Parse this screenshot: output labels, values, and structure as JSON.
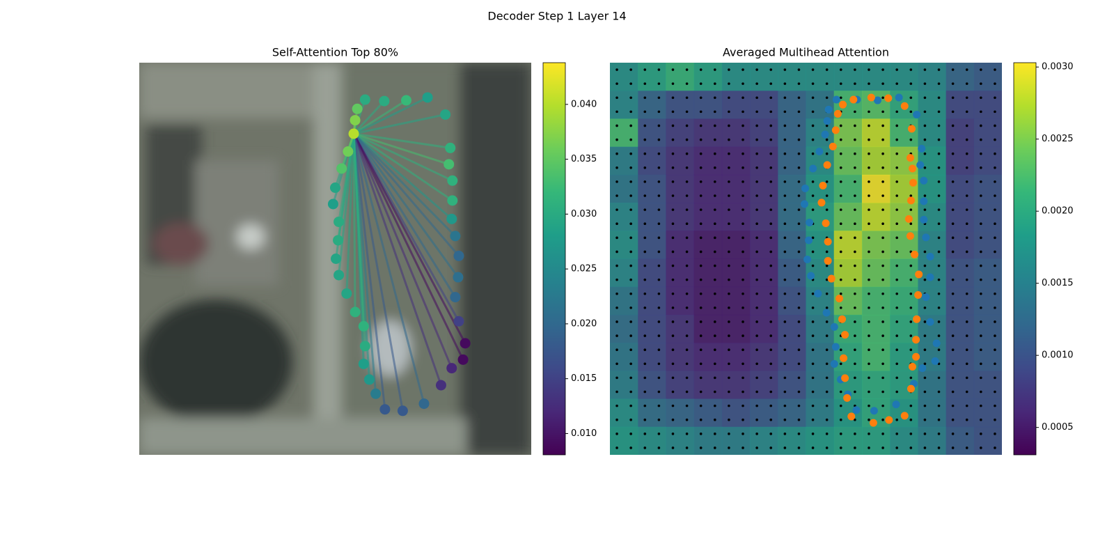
{
  "suptitle": "Decoder Step 1 Layer 14",
  "chart_data": [
    {
      "type": "scatter",
      "title": "Self-Attention Top 80%",
      "colormap": "viridis",
      "xlim": [
        0,
        552
      ],
      "ylim": [
        552,
        0
      ],
      "x": [
        318,
        345,
        376,
        406,
        431,
        438,
        436,
        441,
        441,
        440,
        445,
        450,
        449,
        445,
        450,
        459,
        456,
        440,
        425,
        401,
        371,
        346,
        333,
        324,
        316,
        318,
        316,
        304,
        292,
        281,
        277,
        280,
        281,
        273,
        276,
        285,
        294,
        302,
        304,
        307
      ],
      "y": [
        52,
        54,
        53,
        49,
        73,
        120,
        143,
        166,
        194,
        220,
        244,
        272,
        302,
        330,
        364,
        395,
        418,
        430,
        454,
        480,
        490,
        488,
        466,
        446,
        424,
        399,
        371,
        351,
        325,
        299,
        276,
        250,
        224,
        199,
        176,
        149,
        125,
        100,
        81,
        65
      ],
      "values": [
        0.03,
        0.03,
        0.032,
        0.028,
        0.029,
        0.031,
        0.033,
        0.031,
        0.031,
        0.027,
        0.022,
        0.02,
        0.021,
        0.02,
        0.015,
        0.009,
        0.009,
        0.012,
        0.013,
        0.02,
        0.018,
        0.018,
        0.023,
        0.027,
        0.028,
        0.03,
        0.031,
        0.031,
        0.029,
        0.029,
        0.029,
        0.03,
        0.03,
        0.028,
        0.029,
        0.034,
        0.036,
        0.04,
        0.037,
        0.035
      ],
      "clim": [
        0.00806,
        0.0438
      ],
      "cticks": [
        {
          "value": 0.01,
          "label": "0.010"
        },
        {
          "value": 0.015,
          "label": "0.015"
        },
        {
          "value": 0.02,
          "label": "0.020"
        },
        {
          "value": 0.025,
          "label": "0.025"
        },
        {
          "value": 0.03,
          "label": "0.030"
        },
        {
          "value": 0.035,
          "label": "0.035"
        },
        {
          "value": 0.04,
          "label": "0.040"
        }
      ]
    },
    {
      "type": "heatmap",
      "title": "Averaged Multihead Attention",
      "colormap": "viridis",
      "xlim": [
        0,
        552
      ],
      "ylim": [
        552,
        0
      ],
      "values": [
        [
          0.0017,
          0.0019,
          0.0021,
          0.0019,
          0.0017,
          0.0017,
          0.0017,
          0.0017,
          0.0017,
          0.0017,
          0.0017,
          0.0016,
          0.0012,
          0.0011
        ],
        [
          0.0016,
          0.0012,
          0.001,
          0.001,
          0.0009,
          0.0009,
          0.0012,
          0.0014,
          0.0022,
          0.0023,
          0.002,
          0.0017,
          0.0009,
          0.0009
        ],
        [
          0.0022,
          0.001,
          0.0008,
          0.0007,
          0.0007,
          0.0008,
          0.0012,
          0.0016,
          0.0025,
          0.0028,
          0.0022,
          0.0017,
          0.0008,
          0.0009
        ],
        [
          0.0015,
          0.0009,
          0.0007,
          0.0006,
          0.0006,
          0.0007,
          0.0012,
          0.0017,
          0.0024,
          0.0027,
          0.0026,
          0.0018,
          0.0008,
          0.0009
        ],
        [
          0.0014,
          0.001,
          0.0007,
          0.0006,
          0.0006,
          0.0007,
          0.0013,
          0.0018,
          0.0022,
          0.003,
          0.0027,
          0.0018,
          0.0009,
          0.001
        ],
        [
          0.0016,
          0.001,
          0.0007,
          0.0006,
          0.0006,
          0.0007,
          0.0013,
          0.0019,
          0.0024,
          0.0028,
          0.0026,
          0.0017,
          0.0009,
          0.001
        ],
        [
          0.0017,
          0.001,
          0.0006,
          0.0005,
          0.0005,
          0.0006,
          0.0012,
          0.0018,
          0.0028,
          0.0025,
          0.0024,
          0.0016,
          0.0009,
          0.001
        ],
        [
          0.0016,
          0.0009,
          0.0006,
          0.0005,
          0.0005,
          0.0006,
          0.0011,
          0.0017,
          0.0027,
          0.0024,
          0.0022,
          0.0016,
          0.001,
          0.0011
        ],
        [
          0.0014,
          0.0009,
          0.0006,
          0.0005,
          0.0005,
          0.0006,
          0.001,
          0.0016,
          0.0024,
          0.0022,
          0.0021,
          0.0016,
          0.001,
          0.0011
        ],
        [
          0.0013,
          0.0009,
          0.0007,
          0.0005,
          0.0005,
          0.0006,
          0.0009,
          0.0015,
          0.0021,
          0.0022,
          0.002,
          0.0015,
          0.001,
          0.0011
        ],
        [
          0.0014,
          0.0009,
          0.0007,
          0.0006,
          0.0006,
          0.0007,
          0.0009,
          0.0014,
          0.002,
          0.0022,
          0.0019,
          0.0015,
          0.001,
          0.0011
        ],
        [
          0.0015,
          0.001,
          0.0008,
          0.0007,
          0.0007,
          0.0008,
          0.001,
          0.0014,
          0.0019,
          0.002,
          0.0019,
          0.0014,
          0.001,
          0.001
        ],
        [
          0.0017,
          0.0013,
          0.0012,
          0.0011,
          0.001,
          0.0011,
          0.0012,
          0.0015,
          0.0018,
          0.002,
          0.0018,
          0.0014,
          0.001,
          0.001
        ],
        [
          0.0018,
          0.0017,
          0.0016,
          0.0015,
          0.0015,
          0.0016,
          0.0017,
          0.0018,
          0.0019,
          0.0019,
          0.0017,
          0.0015,
          0.0011,
          0.001
        ]
      ],
      "series": [
        {
          "color": "#1f77b4",
          "x": [
            319,
            348,
            377,
            407,
            432,
            439,
            437,
            442,
            442,
            442,
            445,
            451,
            451,
            445,
            451,
            460,
            458,
            440,
            428,
            403,
            372,
            347,
            335,
            325,
            316,
            318,
            316,
            305,
            293,
            283,
            278,
            280,
            281,
            274,
            275,
            286,
            295,
            303,
            306,
            308
          ],
          "y": [
            52,
            52,
            53,
            49,
            73,
            121,
            144,
            166,
            195,
            221,
            246,
            273,
            302,
            330,
            365,
            395,
            420,
            430,
            452,
            481,
            490,
            489,
            467,
            446,
            424,
            400,
            372,
            352,
            325,
            300,
            277,
            250,
            225,
            199,
            177,
            149,
            125,
            101,
            82,
            66
          ]
        },
        {
          "color": "#ff7f0e",
          "x": [
            328,
            343,
            368,
            392,
            415,
            425,
            423,
            426,
            427,
            424,
            421,
            423,
            429,
            435,
            434,
            432,
            431,
            431,
            426,
            424,
            415,
            393,
            371,
            340,
            334,
            331,
            329,
            331,
            327,
            323,
            312,
            307,
            307,
            304,
            298,
            300,
            306,
            314,
            318,
            321
          ],
          "y": [
            59,
            52,
            49,
            50,
            61,
            93,
            134,
            149,
            169,
            194,
            220,
            244,
            270,
            298,
            327,
            361,
            390,
            414,
            428,
            459,
            497,
            503,
            507,
            498,
            472,
            444,
            416,
            383,
            361,
            332,
            304,
            279,
            252,
            226,
            197,
            173,
            144,
            118,
            95,
            72
          ]
        }
      ],
      "clim": [
        0.00031,
        0.00303
      ],
      "cticks": [
        {
          "value": 0.0005,
          "label": "0.0005"
        },
        {
          "value": 0.001,
          "label": "0.0010"
        },
        {
          "value": 0.0015,
          "label": "0.0015"
        },
        {
          "value": 0.002,
          "label": "0.0020"
        },
        {
          "value": 0.0025,
          "label": "0.0025"
        },
        {
          "value": 0.003,
          "label": "0.0030"
        }
      ]
    }
  ]
}
